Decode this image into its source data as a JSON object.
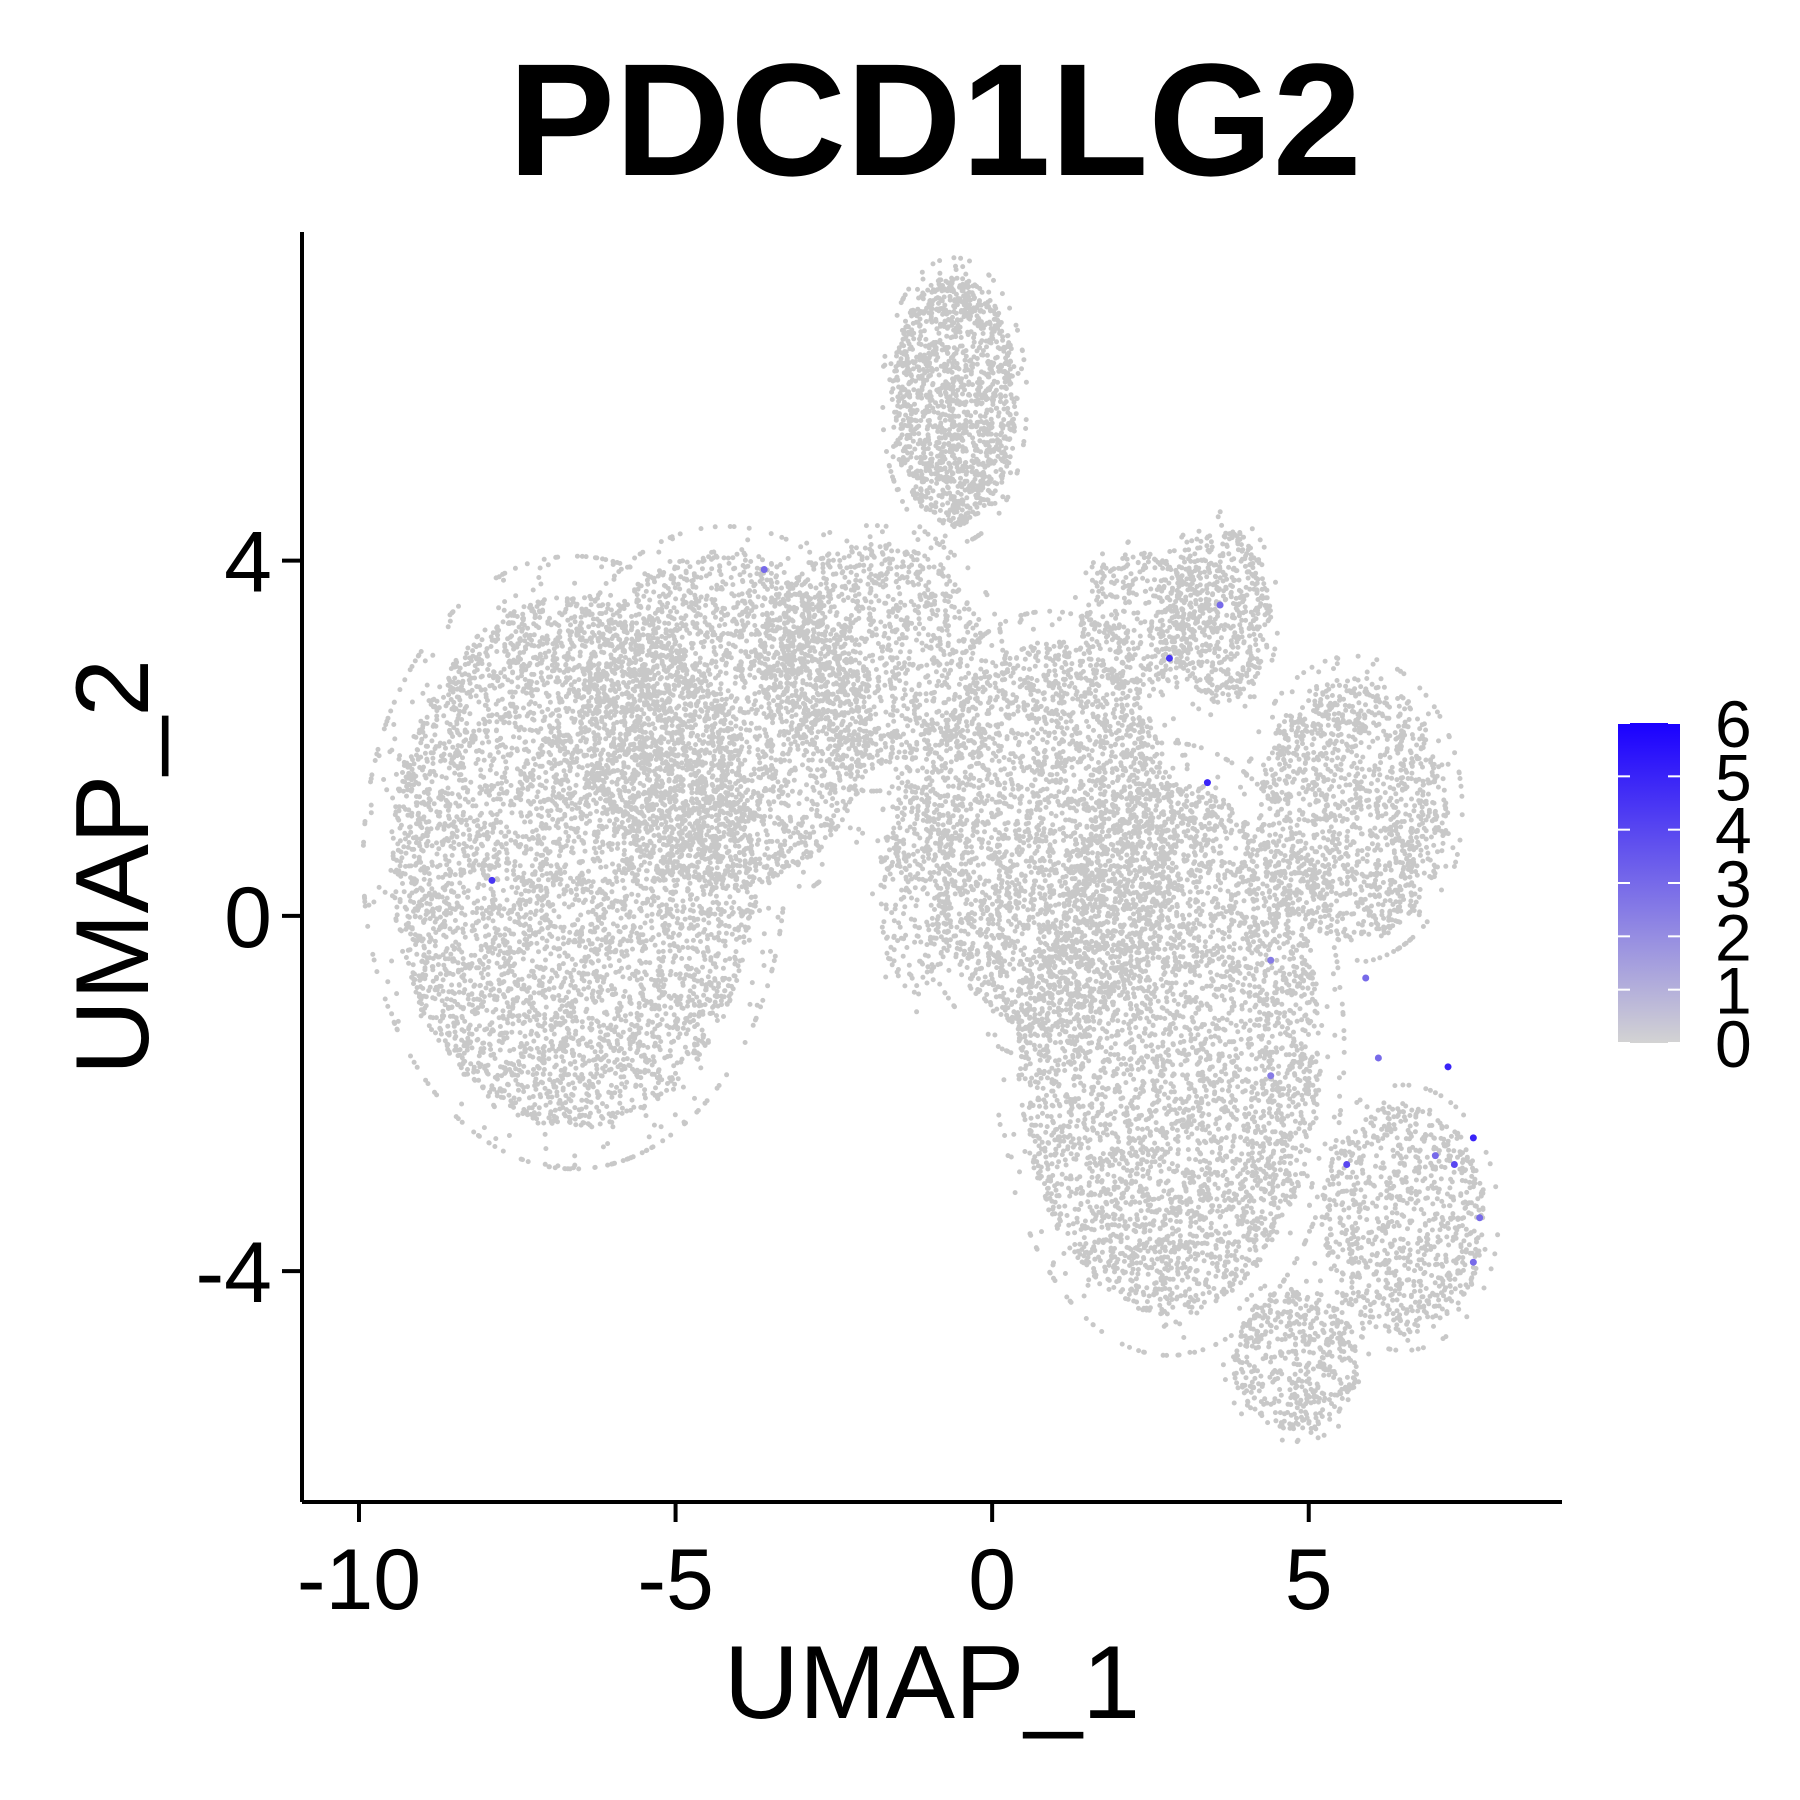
{
  "chart_data": {
    "type": "scatter",
    "title": "PDCD1LG2",
    "xlabel": "UMAP_1",
    "ylabel": "UMAP_2",
    "xlim": [
      -10.9,
      9
    ],
    "ylim": [
      -6.6,
      7.7
    ],
    "x_ticks": [
      -10,
      -5,
      0,
      5
    ],
    "x_tick_labels": [
      "-10",
      "-5",
      "0",
      "5"
    ],
    "y_ticks": [
      -4,
      0,
      4
    ],
    "y_tick_labels": [
      "-4",
      "0",
      "4"
    ],
    "grid": false,
    "legend_position": "right",
    "colorscale": {
      "low_color": "#d3d3d3",
      "high_color": "#1a00ff",
      "min": 0,
      "max": 6,
      "ticks": [
        0,
        1,
        2,
        3,
        4,
        5,
        6
      ],
      "tick_labels": [
        "0",
        "1",
        "2",
        "3",
        "4",
        "5",
        "6"
      ]
    },
    "background_point_color": "#c8c8c8",
    "clusters": [
      {
        "cx": -6.6,
        "cy": 0.6,
        "rx": 2.9,
        "ry": 3.0,
        "n": 5200
      },
      {
        "cx": -4.2,
        "cy": 2.2,
        "rx": 2.3,
        "ry": 1.9,
        "n": 2400
      },
      {
        "cx": -1.9,
        "cy": 2.9,
        "rx": 1.8,
        "ry": 1.3,
        "n": 1200
      },
      {
        "cx": -0.6,
        "cy": 5.8,
        "rx": 1.0,
        "ry": 1.4,
        "n": 1500
      },
      {
        "cx": 0.9,
        "cy": 0.9,
        "rx": 2.0,
        "ry": 2.2,
        "n": 2600
      },
      {
        "cx": 2.8,
        "cy": -1.5,
        "rx": 2.4,
        "ry": 3.0,
        "n": 4200
      },
      {
        "cx": 3.6,
        "cy": 3.4,
        "rx": 0.8,
        "ry": 1.0,
        "n": 600
      },
      {
        "cx": 2.3,
        "cy": 3.3,
        "rx": 0.9,
        "ry": 0.8,
        "n": 400
      },
      {
        "cx": 5.7,
        "cy": 1.2,
        "rx": 1.5,
        "ry": 1.5,
        "n": 1400
      },
      {
        "cx": 6.5,
        "cy": -3.4,
        "rx": 1.3,
        "ry": 1.3,
        "n": 900
      },
      {
        "cx": 4.8,
        "cy": -5.0,
        "rx": 1.0,
        "ry": 0.8,
        "n": 500
      },
      {
        "cx": -1.2,
        "cy": 0.3,
        "rx": 0.6,
        "ry": 1.2,
        "n": 300
      }
    ],
    "expressing_points": [
      {
        "x": -7.9,
        "y": 0.4,
        "value": 4.5
      },
      {
        "x": 2.8,
        "y": 2.9,
        "value": 4.5
      },
      {
        "x": 3.4,
        "y": 1.5,
        "value": 5.0
      },
      {
        "x": 3.6,
        "y": 3.5,
        "value": 3.0
      },
      {
        "x": 4.4,
        "y": -0.5,
        "value": 2.5
      },
      {
        "x": 5.9,
        "y": -0.7,
        "value": 3.0
      },
      {
        "x": 6.1,
        "y": -1.6,
        "value": 3.0
      },
      {
        "x": 4.4,
        "y": -1.8,
        "value": 2.5
      },
      {
        "x": 5.6,
        "y": -2.8,
        "value": 4.0
      },
      {
        "x": 7.2,
        "y": -1.7,
        "value": 5.0
      },
      {
        "x": 7.6,
        "y": -2.5,
        "value": 5.0
      },
      {
        "x": 7.3,
        "y": -2.8,
        "value": 4.0
      },
      {
        "x": 7.0,
        "y": -2.7,
        "value": 3.0
      },
      {
        "x": 7.7,
        "y": -3.4,
        "value": 3.0
      },
      {
        "x": 7.6,
        "y": -3.9,
        "value": 3.0
      },
      {
        "x": -3.6,
        "y": 3.9,
        "value": 3.0
      }
    ]
  }
}
